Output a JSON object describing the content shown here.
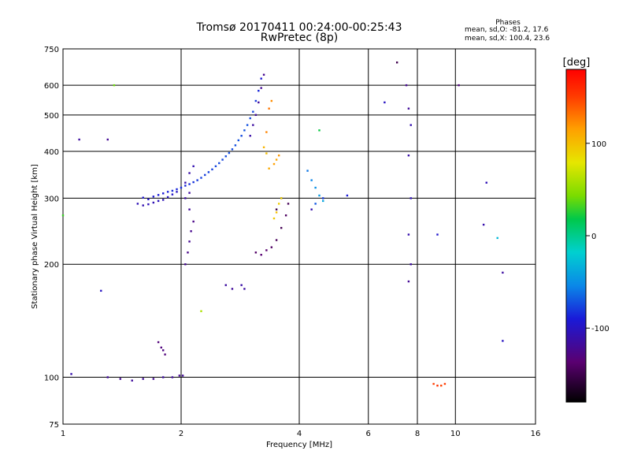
{
  "header": {
    "title": "Tromsø 20170411 00:24:00-00:25:43",
    "subtitle": "RwPretec (8p)",
    "phase_title": "Phases",
    "phase_o": "mean, sd,O: -81.2, 17.6",
    "phase_x": "mean, sd,X: 100.4, 23.6"
  },
  "chart_data": {
    "type": "scatter",
    "xlabel": "Frequency [MHz]",
    "ylabel": "Stationary phase Virtual Height [km]",
    "x_scale": "log",
    "y_scale": "log",
    "xlim": [
      1,
      16
    ],
    "ylim": [
      75,
      750
    ],
    "x_ticks": [
      1,
      2,
      4,
      6,
      8,
      10,
      16
    ],
    "y_ticks": [
      75,
      100,
      200,
      300,
      400,
      500,
      600,
      750
    ],
    "grid": true,
    "colorbar": {
      "label": "[deg]",
      "range": [
        -180,
        180
      ],
      "ticks": [
        100,
        0,
        -100
      ],
      "colormap": "rainbow"
    },
    "series": [
      {
        "points": [
          [
            1.6,
            301,
            -95
          ],
          [
            1.65,
            298,
            -97
          ],
          [
            1.7,
            303,
            -93
          ],
          [
            1.75,
            306,
            -90
          ],
          [
            1.8,
            309,
            -91
          ],
          [
            1.85,
            312,
            -88
          ],
          [
            1.9,
            314,
            -85
          ],
          [
            1.95,
            317,
            -86
          ],
          [
            2.0,
            320,
            -84
          ],
          [
            2.05,
            324,
            -86
          ],
          [
            2.1,
            327,
            -83
          ],
          [
            2.15,
            331,
            -82
          ],
          [
            2.2,
            335,
            -80
          ],
          [
            2.25,
            340,
            -78
          ],
          [
            2.3,
            346,
            -79
          ],
          [
            2.35,
            352,
            -77
          ],
          [
            2.4,
            358,
            -78
          ],
          [
            2.45,
            365,
            -76
          ],
          [
            2.5,
            372,
            -75
          ],
          [
            2.55,
            380,
            -76
          ],
          [
            2.6,
            388,
            -74
          ],
          [
            2.65,
            396,
            -73
          ],
          [
            2.7,
            405,
            -74
          ],
          [
            2.75,
            415,
            -73
          ],
          [
            2.8,
            428,
            -72
          ],
          [
            2.85,
            440,
            -74
          ],
          [
            2.9,
            455,
            -71
          ],
          [
            2.95,
            470,
            -72
          ],
          [
            3.0,
            490,
            -74
          ],
          [
            3.05,
            510,
            -76
          ],
          [
            3.1,
            545,
            -80
          ],
          [
            3.15,
            580,
            -86
          ],
          [
            3.2,
            625,
            -92
          ]
        ]
      },
      {
        "points": [
          [
            1.55,
            290,
            -105
          ],
          [
            1.6,
            287,
            -108
          ],
          [
            1.65,
            289,
            -104
          ],
          [
            1.7,
            292,
            -106
          ],
          [
            1.75,
            295,
            -102
          ],
          [
            1.8,
            297,
            -104
          ],
          [
            1.85,
            302,
            -100
          ],
          [
            1.9,
            307,
            -98
          ],
          [
            1.95,
            312,
            -100
          ],
          [
            2.05,
            330,
            -110
          ],
          [
            2.1,
            350,
            -112
          ],
          [
            2.15,
            365,
            -108
          ]
        ]
      },
      {
        "points": [
          [
            3.0,
            440,
            -112
          ],
          [
            3.05,
            470,
            -115
          ],
          [
            3.1,
            500,
            -118
          ],
          [
            3.15,
            540,
            -117
          ],
          [
            3.2,
            590,
            -120
          ],
          [
            3.25,
            640,
            -123
          ]
        ]
      },
      {
        "points": [
          [
            2.05,
            200,
            -122
          ],
          [
            2.08,
            215,
            -125
          ],
          [
            2.1,
            230,
            -121
          ],
          [
            2.12,
            245,
            -123
          ],
          [
            2.15,
            260,
            -126
          ],
          [
            2.1,
            280,
            -118
          ],
          [
            2.05,
            300,
            -115
          ],
          [
            2.1,
            310,
            -117
          ]
        ]
      },
      {
        "points": [
          [
            3.1,
            215,
            -140
          ],
          [
            3.2,
            212,
            -135
          ],
          [
            3.3,
            218,
            -138
          ],
          [
            3.4,
            222,
            -142
          ],
          [
            3.5,
            232,
            -145
          ],
          [
            3.6,
            250,
            -148
          ],
          [
            3.7,
            270,
            -143
          ],
          [
            3.75,
            290,
            -147
          ],
          [
            3.6,
            300,
            -140
          ],
          [
            3.5,
            280,
            -152
          ]
        ]
      },
      {
        "points": [
          [
            1.3,
            100,
            -118
          ],
          [
            1.4,
            99,
            -120
          ],
          [
            1.5,
            98,
            -117
          ],
          [
            1.6,
            99,
            -119
          ],
          [
            1.7,
            99,
            -121
          ],
          [
            1.8,
            100,
            -116
          ],
          [
            1.9,
            100,
            -118
          ],
          [
            1.98,
            101,
            -122
          ],
          [
            2.02,
            101,
            -119
          ]
        ]
      },
      {
        "points": [
          [
            1.75,
            124,
            -132
          ],
          [
            1.78,
            120,
            -130
          ],
          [
            1.8,
            118,
            -128
          ],
          [
            1.82,
            115,
            -131
          ]
        ]
      },
      {
        "points": [
          [
            2.6,
            176,
            -115
          ],
          [
            2.7,
            172,
            -118
          ],
          [
            2.85,
            176,
            -112
          ],
          [
            2.9,
            172,
            -114
          ]
        ]
      },
      {
        "points": [
          [
            3.35,
            360,
            110
          ],
          [
            3.45,
            370,
            115
          ],
          [
            3.5,
            380,
            112
          ],
          [
            3.55,
            390,
            118
          ],
          [
            3.3,
            450,
            125
          ],
          [
            3.35,
            520,
            130
          ],
          [
            3.4,
            545,
            122
          ],
          [
            3.25,
            410,
            105
          ],
          [
            3.3,
            395,
            100
          ]
        ]
      },
      {
        "points": [
          [
            3.45,
            265,
            95
          ],
          [
            3.5,
            275,
            100
          ],
          [
            3.55,
            290,
            92
          ],
          [
            3.6,
            300,
            88
          ]
        ]
      },
      {
        "points": [
          [
            4.2,
            355,
            -60
          ],
          [
            4.3,
            335,
            -55
          ],
          [
            4.4,
            320,
            -50
          ],
          [
            4.5,
            305,
            -45
          ],
          [
            4.6,
            295,
            -40
          ],
          [
            4.4,
            290,
            -70
          ]
        ]
      },
      {
        "points": [
          [
            8.8,
            96,
            150
          ],
          [
            9.0,
            95,
            155
          ],
          [
            9.2,
            95,
            148
          ],
          [
            9.4,
            96,
            152
          ]
        ]
      },
      {
        "points": [
          [
            7.6,
            180,
            -120
          ],
          [
            7.7,
            200,
            -115
          ],
          [
            7.6,
            240,
            -110
          ],
          [
            7.7,
            300,
            -105
          ],
          [
            7.6,
            390,
            -112
          ],
          [
            7.7,
            470,
            -108
          ],
          [
            7.6,
            520,
            -118
          ],
          [
            7.5,
            600,
            -122
          ]
        ]
      },
      {
        "points": [
          [
            1.05,
            102,
            -110
          ],
          [
            1.1,
            430,
            -115
          ],
          [
            1.3,
            430,
            -120
          ],
          [
            1.25,
            170,
            -100
          ],
          [
            4.6,
            300,
            -80
          ],
          [
            5.3,
            305,
            -90
          ],
          [
            6.6,
            540,
            -100
          ],
          [
            11.8,
            255,
            -110
          ],
          [
            12.0,
            330,
            -105
          ],
          [
            13.2,
            190,
            -115
          ],
          [
            13.2,
            125,
            -100
          ],
          [
            12.8,
            235,
            -30
          ],
          [
            4.5,
            455,
            20
          ],
          [
            2.25,
            150,
            60
          ],
          [
            1.0,
            270,
            30
          ],
          [
            4.3,
            280,
            -110
          ],
          [
            9.0,
            240,
            -95
          ],
          [
            10.2,
            600,
            -130
          ],
          [
            7.1,
            690,
            -150
          ],
          [
            1.35,
            600,
            40
          ]
        ]
      }
    ]
  }
}
